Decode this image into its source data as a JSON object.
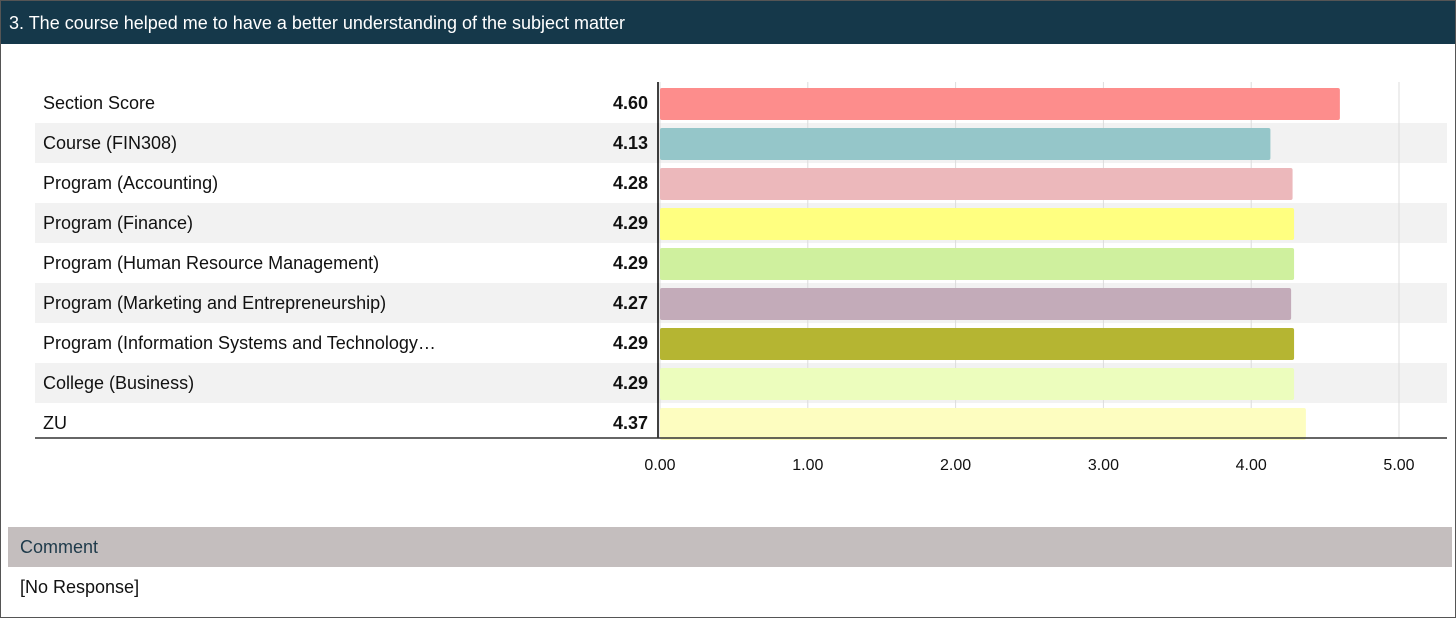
{
  "header": {
    "title": "3. The course helped me to have a better understanding of the subject matter"
  },
  "chart_data": {
    "type": "bar",
    "orientation": "horizontal",
    "categories": [
      "Section Score",
      "Course (FIN308)",
      "Program (Accounting)",
      "Program (Finance)",
      "Program (Human Resource Management)",
      "Program (Marketing and Entrepreneurship)",
      "Program (Information Systems and Technology…",
      "College (Business)",
      "ZU"
    ],
    "values": [
      4.6,
      4.13,
      4.28,
      4.29,
      4.29,
      4.27,
      4.29,
      4.29,
      4.37
    ],
    "value_labels": [
      "4.60",
      "4.13",
      "4.28",
      "4.29",
      "4.29",
      "4.27",
      "4.29",
      "4.29",
      "4.37"
    ],
    "colors": [
      "#fd8d8c",
      "#95c6c9",
      "#ecb8bb",
      "#ffff80",
      "#cff09e",
      "#c3abb9",
      "#b5b532",
      "#ecfdbd",
      "#fdfdc0"
    ],
    "xlim": [
      0,
      5
    ],
    "xticks": [
      {
        "value": 0,
        "label": "0.00"
      },
      {
        "value": 1,
        "label": "1.00"
      },
      {
        "value": 2,
        "label": "2.00"
      },
      {
        "value": 3,
        "label": "3.00"
      },
      {
        "value": 4,
        "label": "4.00"
      },
      {
        "value": 5,
        "label": "5.00"
      }
    ],
    "grid": true
  },
  "comment": {
    "label": "Comment",
    "text": "[No Response]"
  }
}
